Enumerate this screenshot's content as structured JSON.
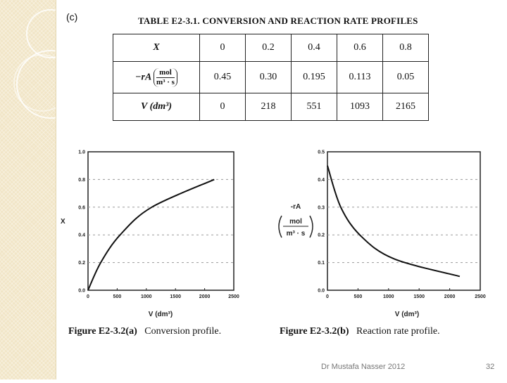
{
  "slide": {
    "part_label": "(c)",
    "footer": "Dr Mustafa Nasser 2012",
    "page_number": "32"
  },
  "table": {
    "title": "TABLE E2-3.1.   CONVERSION AND REACTION RATE PROFILES",
    "rows": [
      {
        "header": "X",
        "values": [
          "0",
          "0.2",
          "0.4",
          "0.6",
          "0.8"
        ]
      },
      {
        "header": "−rA",
        "header_unit_num": "mol",
        "header_unit_den": "m³ · s",
        "values": [
          "0.45",
          "0.30",
          "0.195",
          "0.113",
          "0.05"
        ]
      },
      {
        "header": "V (dm³)",
        "values": [
          "0",
          "218",
          "551",
          "1093",
          "2165"
        ]
      }
    ]
  },
  "chart_data": [
    {
      "type": "line",
      "title": "Figure E2-3.2(a)   Conversion profile.",
      "caption_fig": "Figure E2-3.2(a)",
      "caption_text": "Conversion profile.",
      "xlabel": "V (dm³)",
      "ylabel": "X",
      "xlim": [
        0,
        2500
      ],
      "ylim": [
        0,
        1.0
      ],
      "xticks": [
        "0",
        "500",
        "1000",
        "1500",
        "2000",
        "2500"
      ],
      "yticks": [
        "0.0",
        "0.2",
        "0.4",
        "0.6",
        "0.8",
        "1.0"
      ],
      "x": [
        0,
        218,
        551,
        1093,
        2165
      ],
      "y": [
        0,
        0.2,
        0.4,
        0.6,
        0.8
      ]
    },
    {
      "type": "line",
      "title": "Figure E2-3.2(b)   Reaction rate profile.",
      "caption_fig": "Figure E2-3.2(b)",
      "caption_text": "Reaction rate profile.",
      "xlabel": "V (dm³)",
      "ylabel": "-rA",
      "ylabel_unit_num": "mol",
      "ylabel_unit_den": "m³ · s",
      "xlim": [
        0,
        2500
      ],
      "ylim": [
        0,
        0.5
      ],
      "xticks": [
        "0",
        "500",
        "1000",
        "1500",
        "2000",
        "2500"
      ],
      "yticks": [
        "0.0",
        "0.1",
        "0.2",
        "0.3",
        "0.4",
        "0.5"
      ],
      "x": [
        0,
        218,
        551,
        1093,
        2165
      ],
      "y": [
        0.45,
        0.3,
        0.195,
        0.113,
        0.05
      ]
    }
  ]
}
